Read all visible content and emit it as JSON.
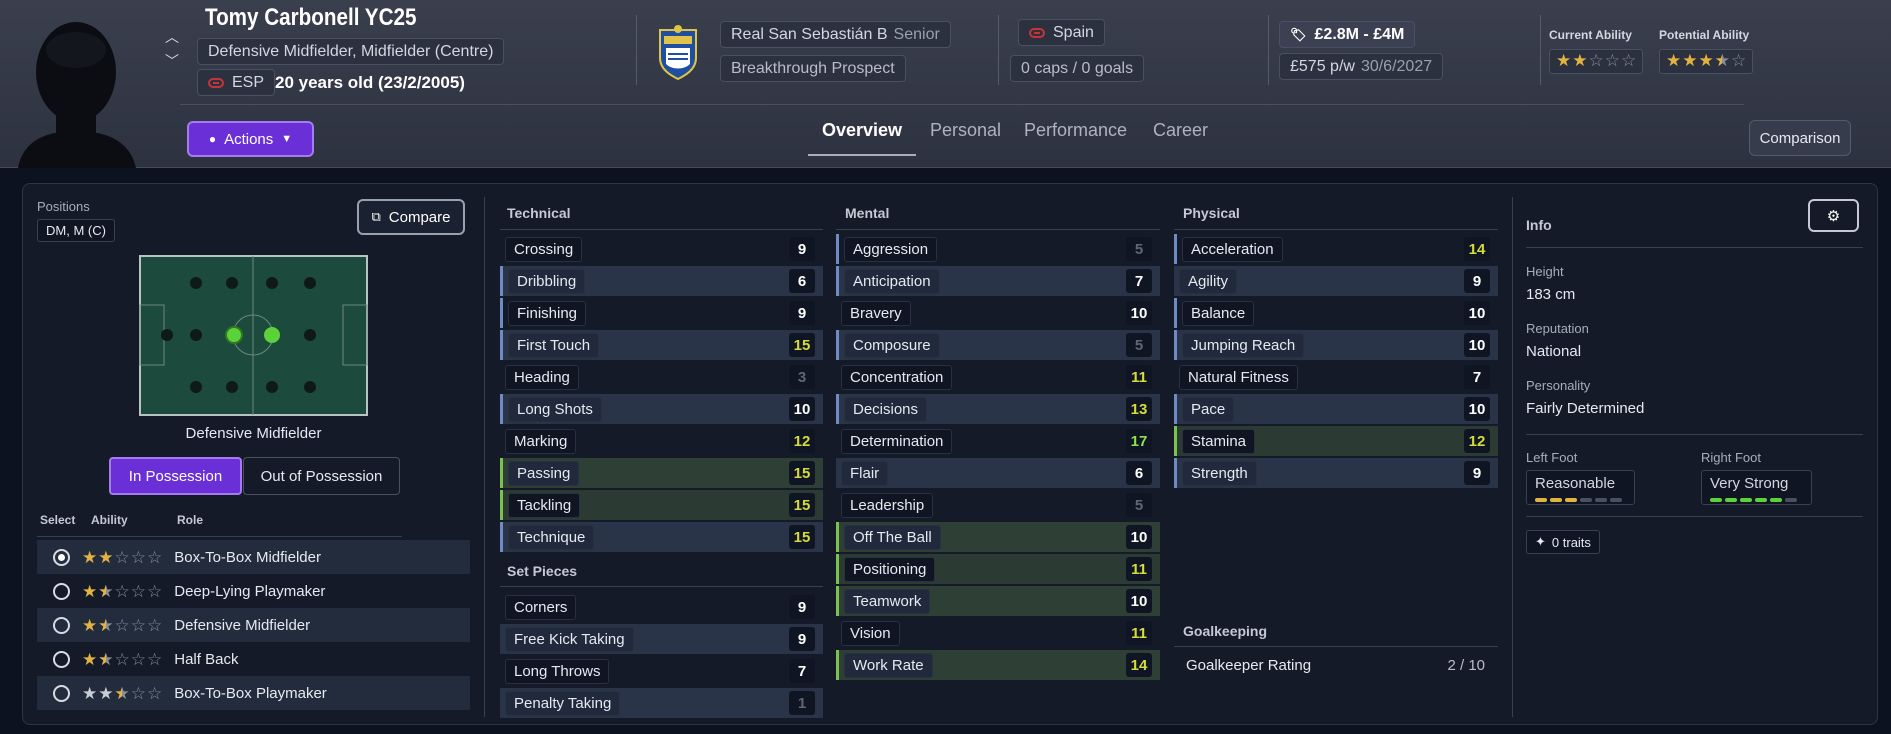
{
  "player": {
    "name": "Tomy Carbonell YC25",
    "positions_text": "Defensive Midfielder, Midfielder (Centre)",
    "nation_code": "ESP",
    "age_text": "20 years old (23/2/2005)",
    "club": "Real San Sebastián B",
    "squad": "Senior",
    "status": "Breakthrough Prospect",
    "nation": "Spain",
    "caps_goals": "0 caps / 0 goals",
    "value": "£2.8M - £4M",
    "wage": "£575 p/w",
    "contract_end": "30/6/2027",
    "current_ability_label": "Current Ability",
    "current_ability_stars": 2,
    "potential_ability_label": "Potential Ability",
    "potential_ability_stars": 3.5
  },
  "header": {
    "actions_label": "Actions",
    "tabs": [
      "Overview",
      "Personal",
      "Performance",
      "Career"
    ],
    "active_tab": "Overview",
    "comparison_label": "Comparison"
  },
  "positions_panel": {
    "title": "Positions",
    "positions_code": "DM, M (C)",
    "compare_label": "Compare",
    "selected_role": "Defensive Midfielder",
    "possession_tabs": [
      "In Possession",
      "Out of Possession"
    ],
    "table_headers": [
      "Select",
      "Ability",
      "Role"
    ],
    "roles": [
      {
        "name": "Box-To-Box Midfielder",
        "stars": 2,
        "star_color": "#e3b342",
        "selected": true
      },
      {
        "name": "Deep-Lying Playmaker",
        "stars": 1.5,
        "star_color": "#e3b342",
        "selected": false
      },
      {
        "name": "Defensive Midfielder",
        "stars": 1.5,
        "star_color": "#e3b342",
        "selected": false
      },
      {
        "name": "Half Back",
        "stars": 1.5,
        "star_color": "#e3b342",
        "selected": false
      },
      {
        "name": "Box-To-Box Playmaker",
        "stars": 2.5,
        "star_color": "#c9ccd4",
        "selected": false
      }
    ]
  },
  "attributes": {
    "technical_title": "Technical",
    "technical": [
      {
        "name": "Crossing",
        "value": 9
      },
      {
        "name": "Dribbling",
        "value": 6
      },
      {
        "name": "Finishing",
        "value": 9
      },
      {
        "name": "First Touch",
        "value": 15
      },
      {
        "name": "Heading",
        "value": 3
      },
      {
        "name": "Long Shots",
        "value": 10
      },
      {
        "name": "Marking",
        "value": 12
      },
      {
        "name": "Passing",
        "value": 15
      },
      {
        "name": "Tackling",
        "value": 15
      },
      {
        "name": "Technique",
        "value": 15
      }
    ],
    "set_pieces_title": "Set Pieces",
    "set_pieces": [
      {
        "name": "Corners",
        "value": 9
      },
      {
        "name": "Free Kick Taking",
        "value": 9
      },
      {
        "name": "Long Throws",
        "value": 7
      },
      {
        "name": "Penalty Taking",
        "value": 1
      }
    ],
    "mental_title": "Mental",
    "mental": [
      {
        "name": "Aggression",
        "value": 5
      },
      {
        "name": "Anticipation",
        "value": 7
      },
      {
        "name": "Bravery",
        "value": 10
      },
      {
        "name": "Composure",
        "value": 5
      },
      {
        "name": "Concentration",
        "value": 11
      },
      {
        "name": "Decisions",
        "value": 13
      },
      {
        "name": "Determination",
        "value": 17
      },
      {
        "name": "Flair",
        "value": 6
      },
      {
        "name": "Leadership",
        "value": 5
      },
      {
        "name": "Off The Ball",
        "value": 10
      },
      {
        "name": "Positioning",
        "value": 11
      },
      {
        "name": "Teamwork",
        "value": 10
      },
      {
        "name": "Vision",
        "value": 11
      },
      {
        "name": "Work Rate",
        "value": 14
      }
    ],
    "physical_title": "Physical",
    "physical": [
      {
        "name": "Acceleration",
        "value": 14
      },
      {
        "name": "Agility",
        "value": 9
      },
      {
        "name": "Balance",
        "value": 10
      },
      {
        "name": "Jumping Reach",
        "value": 10
      },
      {
        "name": "Natural Fitness",
        "value": 7
      },
      {
        "name": "Pace",
        "value": 10
      },
      {
        "name": "Stamina",
        "value": 12
      },
      {
        "name": "Strength",
        "value": 9
      }
    ],
    "goalkeeping_title": "Goalkeeping",
    "goalkeeper_rating_label": "Goalkeeper Rating",
    "goalkeeper_rating": "2 / 10"
  },
  "info": {
    "title": "Info",
    "height_label": "Height",
    "height": "183 cm",
    "reputation_label": "Reputation",
    "reputation": "National",
    "personality_label": "Personality",
    "personality": "Fairly Determined",
    "left_foot_label": "Left Foot",
    "left_foot": "Reasonable",
    "left_foot_level": 3,
    "right_foot_label": "Right Foot",
    "right_foot": "Very Strong",
    "right_foot_level": 5,
    "traits_label": "0 traits"
  },
  "colors": {
    "accent_purple": "#6a2fd6",
    "highlight_green": "#7bc24f",
    "highlight_blue": "#6f8ac5",
    "star_gold": "#e3b342"
  }
}
